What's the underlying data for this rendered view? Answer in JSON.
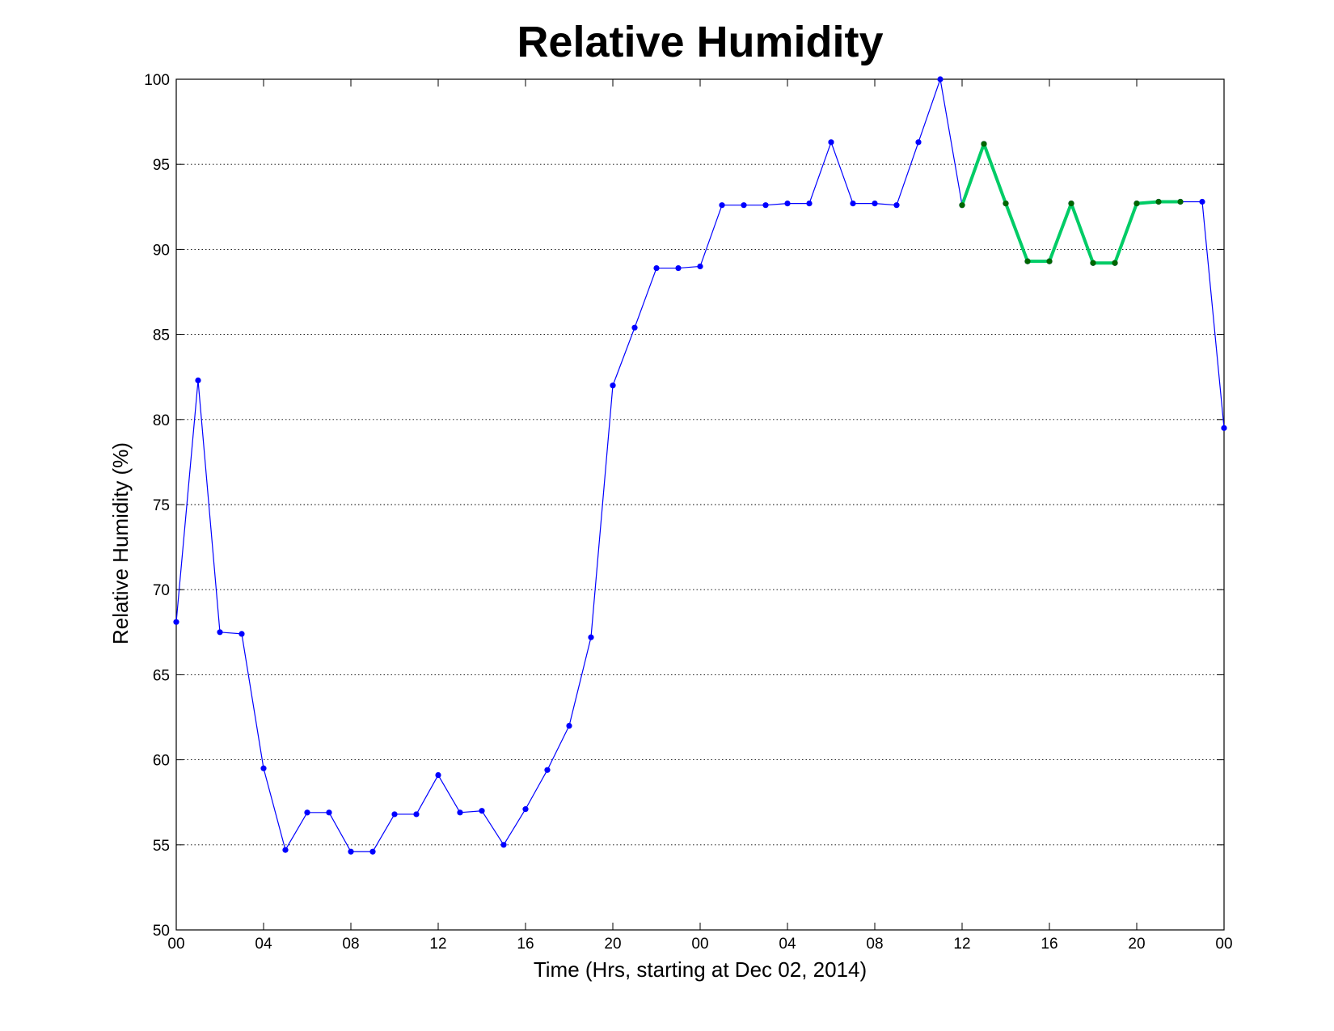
{
  "chart_data": {
    "type": "line",
    "title": "Relative Humidity",
    "xlabel": "Time (Hrs, starting at Dec 02, 2014)",
    "ylabel": "Relative Humidity (%)",
    "xlim": [
      0,
      48
    ],
    "ylim": [
      50,
      100
    ],
    "grid": "horizontal, dotted",
    "xticks": [
      {
        "x": 0,
        "label": "00"
      },
      {
        "x": 4,
        "label": "04"
      },
      {
        "x": 8,
        "label": "08"
      },
      {
        "x": 12,
        "label": "12"
      },
      {
        "x": 16,
        "label": "16"
      },
      {
        "x": 20,
        "label": "20"
      },
      {
        "x": 24,
        "label": "00"
      },
      {
        "x": 28,
        "label": "04"
      },
      {
        "x": 32,
        "label": "08"
      },
      {
        "x": 36,
        "label": "12"
      },
      {
        "x": 40,
        "label": "16"
      },
      {
        "x": 44,
        "label": "20"
      },
      {
        "x": 48,
        "label": "00"
      }
    ],
    "yticks": [
      {
        "y": 50,
        "label": "50"
      },
      {
        "y": 55,
        "label": "55"
      },
      {
        "y": 60,
        "label": "60"
      },
      {
        "y": 65,
        "label": "65"
      },
      {
        "y": 70,
        "label": "70"
      },
      {
        "y": 75,
        "label": "75"
      },
      {
        "y": 80,
        "label": "80"
      },
      {
        "y": 85,
        "label": "85"
      },
      {
        "y": 90,
        "label": "90"
      },
      {
        "y": 95,
        "label": "95"
      },
      {
        "y": 100,
        "label": "100"
      }
    ],
    "series": [
      {
        "line_color": "#0000ff",
        "marker_color": "#0000ff",
        "x": [
          0,
          1,
          2,
          3,
          4,
          5,
          6,
          7,
          8,
          9,
          10,
          11,
          12,
          13,
          14,
          15,
          16,
          17,
          18,
          19,
          20,
          21,
          22,
          23,
          24,
          25,
          26,
          27,
          28,
          29,
          30,
          31,
          32,
          33,
          34,
          35,
          36,
          37,
          38,
          39,
          40,
          41,
          42,
          43,
          44,
          45,
          46,
          47,
          48
        ],
        "values": [
          68.1,
          82.3,
          67.5,
          67.4,
          59.5,
          54.7,
          56.9,
          56.9,
          54.6,
          54.6,
          56.8,
          56.8,
          59.1,
          56.9,
          57.0,
          55.0,
          57.1,
          59.4,
          62.0,
          67.2,
          82.0,
          85.4,
          88.9,
          88.9,
          89.0,
          92.6,
          92.6,
          92.6,
          92.7,
          92.7,
          96.3,
          92.7,
          92.7,
          92.6,
          96.3,
          100.0,
          92.6,
          96.2,
          92.7,
          89.3,
          89.3,
          92.7,
          89.2,
          89.2,
          92.7,
          92.8,
          92.8,
          92.8,
          79.5
        ]
      },
      {
        "line_color": "#00cc66",
        "marker_color": "#006600",
        "x": [
          36,
          37,
          38,
          39,
          40,
          41,
          42,
          43,
          44,
          45,
          46
        ],
        "values": [
          92.6,
          96.2,
          92.7,
          89.3,
          89.3,
          92.7,
          89.2,
          89.2,
          92.7,
          92.8,
          92.8
        ]
      }
    ]
  }
}
